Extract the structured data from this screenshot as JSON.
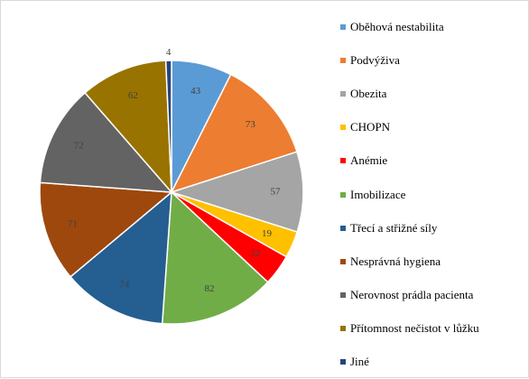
{
  "chart_data": {
    "type": "pie",
    "title": "",
    "legend_position": "right",
    "slices": [
      {
        "label": "Oběhová nestabilita",
        "value": 43,
        "color": "#5b9bd5"
      },
      {
        "label": "Podvýživa",
        "value": 73,
        "color": "#ed7d31"
      },
      {
        "label": "Obezita",
        "value": 57,
        "color": "#a5a5a5"
      },
      {
        "label": "CHOPN",
        "value": 19,
        "color": "#ffc000"
      },
      {
        "label": "Anémie",
        "value": 22,
        "color": "#ff0000"
      },
      {
        "label": "Imobilizace",
        "value": 82,
        "color": "#70ad47"
      },
      {
        "label": "Třecí a střižné síly",
        "value": 74,
        "color": "#255e91"
      },
      {
        "label": "Nesprávná hygiena",
        "value": 71,
        "color": "#9e480e"
      },
      {
        "label": "Nerovnost prádla pacienta",
        "value": 72,
        "color": "#636363"
      },
      {
        "label": "Přítomnost nečistot v lůžku",
        "value": 62,
        "color": "#997300"
      },
      {
        "label": "Jiné",
        "value": 4,
        "color": "#264478"
      }
    ]
  }
}
